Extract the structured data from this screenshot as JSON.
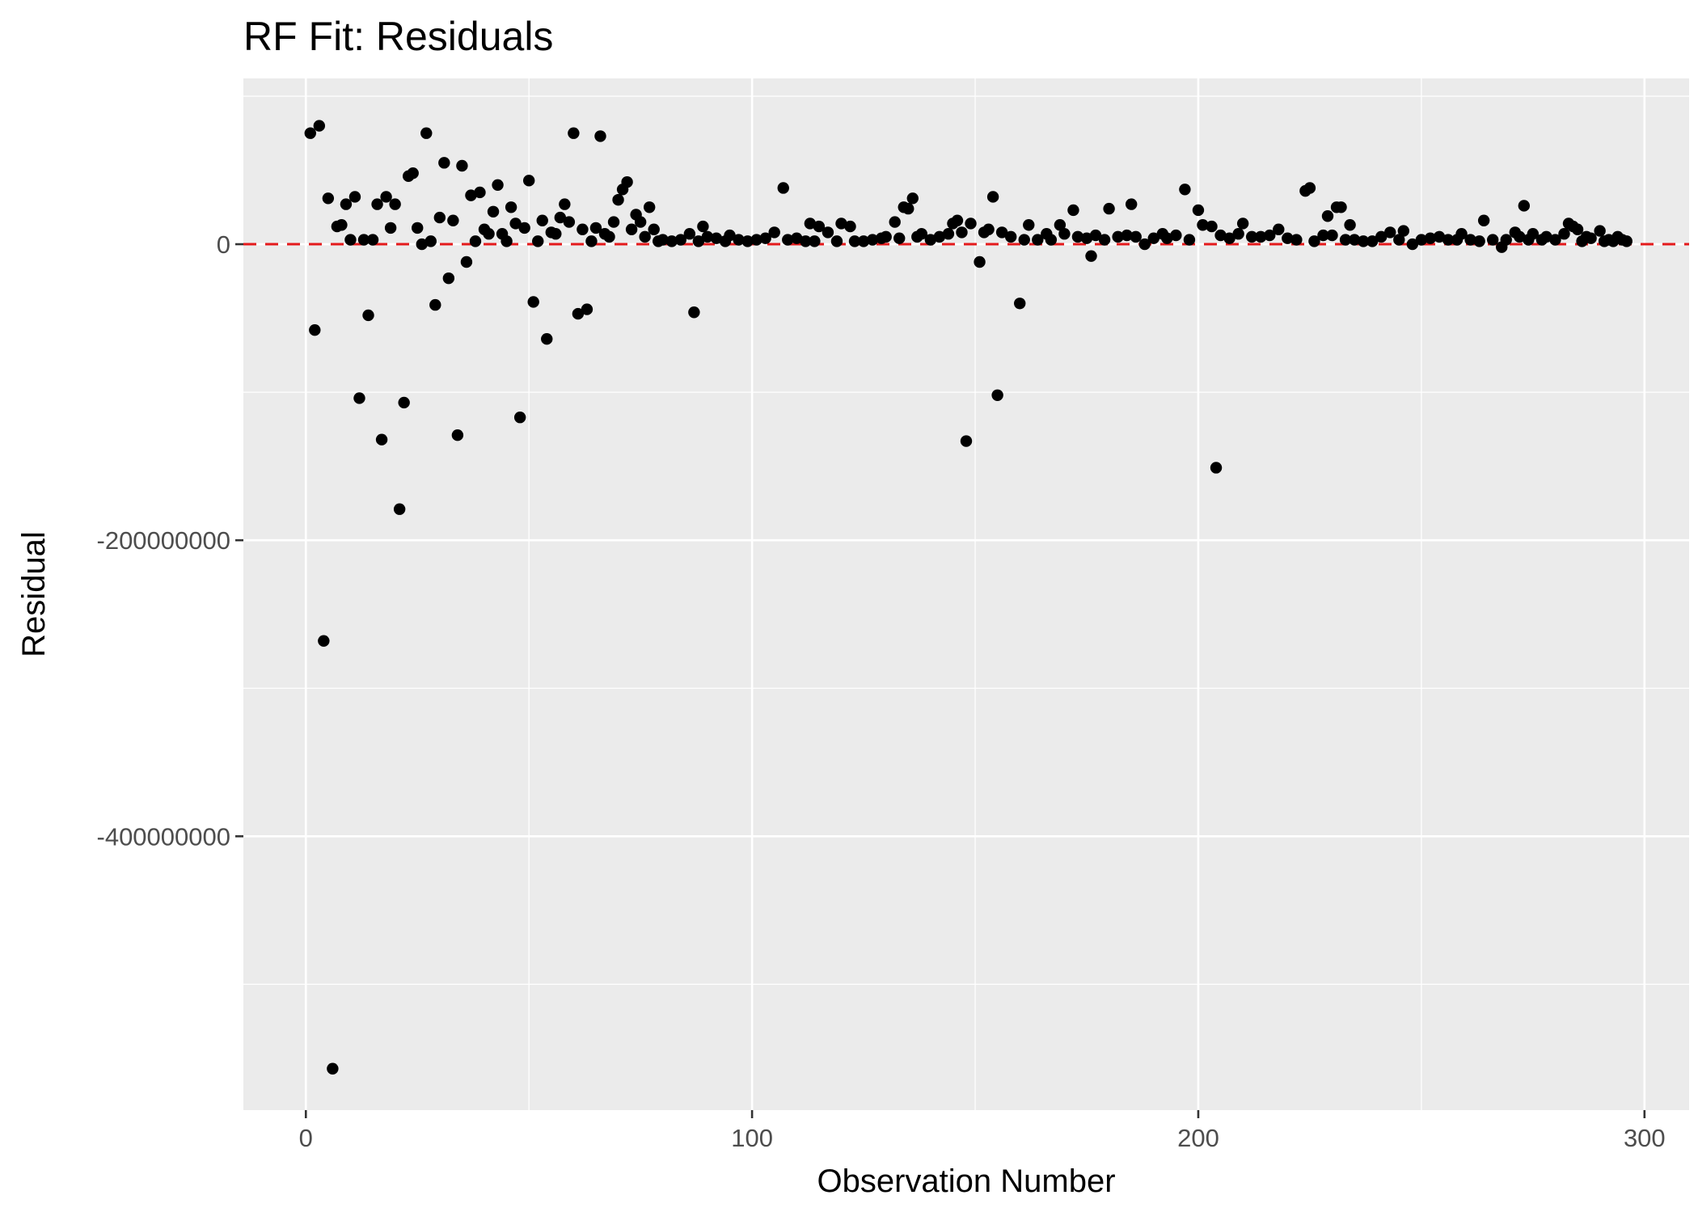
{
  "chart_data": {
    "type": "scatter",
    "title": "RF Fit: Residuals",
    "xlabel": "Observation Number",
    "ylabel": "Residual",
    "xlim": [
      -14,
      310
    ],
    "ylim": [
      -585000000,
      112000000
    ],
    "x_ticks": [
      0,
      100,
      200,
      300
    ],
    "x_tick_labels": [
      "0",
      "100",
      "200",
      "300"
    ],
    "y_ticks": [
      0,
      -200000000,
      -400000000
    ],
    "y_tick_labels": [
      "0",
      "-200000000",
      "-400000000"
    ],
    "x_minor_ticks": [
      50,
      150,
      250
    ],
    "y_minor_ticks": [
      100000000,
      -100000000,
      -300000000,
      -500000000
    ],
    "reference_line": {
      "y": 0,
      "style": "dashed",
      "color": "#e41a1c"
    },
    "grid": true,
    "point_color": "#000000",
    "panel_color": "#ebebeb",
    "points": [
      [
        1,
        75000000
      ],
      [
        2,
        -58000000
      ],
      [
        3,
        80000000
      ],
      [
        4,
        -268000000
      ],
      [
        5,
        31000000
      ],
      [
        6,
        -557000000
      ],
      [
        7,
        12000000
      ],
      [
        8,
        13000000
      ],
      [
        9,
        27000000
      ],
      [
        10,
        3000000
      ],
      [
        11,
        32000000
      ],
      [
        12,
        -104000000
      ],
      [
        13,
        3000000
      ],
      [
        14,
        -48000000
      ],
      [
        15,
        3000000
      ],
      [
        16,
        27000000
      ],
      [
        17,
        -132000000
      ],
      [
        18,
        32000000
      ],
      [
        19,
        11000000
      ],
      [
        20,
        27000000
      ],
      [
        21,
        -179000000
      ],
      [
        22,
        -107000000
      ],
      [
        23,
        46000000
      ],
      [
        24,
        48000000
      ],
      [
        25,
        11000000
      ],
      [
        26,
        0
      ],
      [
        27,
        75000000
      ],
      [
        28,
        2000000
      ],
      [
        29,
        -41000000
      ],
      [
        30,
        18000000
      ],
      [
        31,
        55000000
      ],
      [
        32,
        -23000000
      ],
      [
        33,
        16000000
      ],
      [
        34,
        -129000000
      ],
      [
        35,
        53000000
      ],
      [
        36,
        -12000000
      ],
      [
        37,
        33000000
      ],
      [
        38,
        2000000
      ],
      [
        39,
        35000000
      ],
      [
        40,
        10000000
      ],
      [
        41,
        7000000
      ],
      [
        42,
        22000000
      ],
      [
        43,
        40000000
      ],
      [
        44,
        7000000
      ],
      [
        45,
        2000000
      ],
      [
        46,
        25000000
      ],
      [
        47,
        14000000
      ],
      [
        48,
        -117000000
      ],
      [
        49,
        11000000
      ],
      [
        50,
        43000000
      ],
      [
        51,
        -39000000
      ],
      [
        52,
        2000000
      ],
      [
        53,
        16000000
      ],
      [
        54,
        -64000000
      ],
      [
        55,
        8000000
      ],
      [
        56,
        7000000
      ],
      [
        57,
        18000000
      ],
      [
        58,
        27000000
      ],
      [
        59,
        15000000
      ],
      [
        60,
        75000000
      ],
      [
        61,
        -47000000
      ],
      [
        62,
        10000000
      ],
      [
        63,
        -44000000
      ],
      [
        64,
        2000000
      ],
      [
        65,
        11000000
      ],
      [
        66,
        73000000
      ],
      [
        67,
        7000000
      ],
      [
        68,
        5000000
      ],
      [
        69,
        15000000
      ],
      [
        70,
        30000000
      ],
      [
        71,
        37000000
      ],
      [
        72,
        42000000
      ],
      [
        73,
        10000000
      ],
      [
        74,
        20000000
      ],
      [
        75,
        15000000
      ],
      [
        76,
        5000000
      ],
      [
        77,
        25000000
      ],
      [
        78,
        10000000
      ],
      [
        79,
        2000000
      ],
      [
        80,
        3000000
      ],
      [
        82,
        2000000
      ],
      [
        84,
        3000000
      ],
      [
        86,
        7000000
      ],
      [
        87,
        -46000000
      ],
      [
        88,
        2000000
      ],
      [
        89,
        12000000
      ],
      [
        90,
        5000000
      ],
      [
        92,
        4000000
      ],
      [
        94,
        2000000
      ],
      [
        95,
        6000000
      ],
      [
        97,
        3000000
      ],
      [
        99,
        2000000
      ],
      [
        101,
        3000000
      ],
      [
        103,
        4000000
      ],
      [
        105,
        8000000
      ],
      [
        107,
        38000000
      ],
      [
        108,
        3000000
      ],
      [
        110,
        4000000
      ],
      [
        112,
        2000000
      ],
      [
        113,
        14000000
      ],
      [
        114,
        2000000
      ],
      [
        115,
        12000000
      ],
      [
        117,
        8000000
      ],
      [
        119,
        2000000
      ],
      [
        120,
        14000000
      ],
      [
        122,
        12000000
      ],
      [
        123,
        2000000
      ],
      [
        125,
        2000000
      ],
      [
        127,
        3000000
      ],
      [
        129,
        4000000
      ],
      [
        130,
        5000000
      ],
      [
        132,
        15000000
      ],
      [
        133,
        4000000
      ],
      [
        134,
        25000000
      ],
      [
        135,
        24000000
      ],
      [
        136,
        31000000
      ],
      [
        137,
        5000000
      ],
      [
        138,
        7000000
      ],
      [
        140,
        3000000
      ],
      [
        142,
        5000000
      ],
      [
        144,
        7000000
      ],
      [
        145,
        14000000
      ],
      [
        146,
        16000000
      ],
      [
        147,
        8000000
      ],
      [
        148,
        -133000000
      ],
      [
        149,
        14000000
      ],
      [
        151,
        -12000000
      ],
      [
        152,
        8000000
      ],
      [
        153,
        10000000
      ],
      [
        154,
        32000000
      ],
      [
        155,
        -102000000
      ],
      [
        156,
        8000000
      ],
      [
        158,
        5000000
      ],
      [
        160,
        -40000000
      ],
      [
        161,
        3000000
      ],
      [
        162,
        13000000
      ],
      [
        164,
        3000000
      ],
      [
        166,
        7000000
      ],
      [
        167,
        3000000
      ],
      [
        169,
        13000000
      ],
      [
        170,
        7000000
      ],
      [
        172,
        23000000
      ],
      [
        173,
        5000000
      ],
      [
        175,
        4000000
      ],
      [
        176,
        -8000000
      ],
      [
        177,
        6000000
      ],
      [
        179,
        3000000
      ],
      [
        180,
        24000000
      ],
      [
        182,
        5000000
      ],
      [
        184,
        6000000
      ],
      [
        185,
        27000000
      ],
      [
        186,
        5000000
      ],
      [
        188,
        0
      ],
      [
        190,
        4000000
      ],
      [
        192,
        7000000
      ],
      [
        193,
        4000000
      ],
      [
        195,
        6000000
      ],
      [
        197,
        37000000
      ],
      [
        198,
        3000000
      ],
      [
        200,
        23000000
      ],
      [
        201,
        13000000
      ],
      [
        203,
        12000000
      ],
      [
        204,
        -151000000
      ],
      [
        205,
        6000000
      ],
      [
        207,
        4000000
      ],
      [
        209,
        7000000
      ],
      [
        210,
        14000000
      ],
      [
        212,
        5000000
      ],
      [
        214,
        5000000
      ],
      [
        216,
        6000000
      ],
      [
        218,
        10000000
      ],
      [
        220,
        4000000
      ],
      [
        222,
        3000000
      ],
      [
        224,
        36000000
      ],
      [
        225,
        38000000
      ],
      [
        226,
        2000000
      ],
      [
        228,
        6000000
      ],
      [
        229,
        19000000
      ],
      [
        230,
        6000000
      ],
      [
        231,
        25000000
      ],
      [
        232,
        25000000
      ],
      [
        233,
        3000000
      ],
      [
        234,
        13000000
      ],
      [
        235,
        3000000
      ],
      [
        237,
        2000000
      ],
      [
        239,
        2000000
      ],
      [
        241,
        5000000
      ],
      [
        243,
        8000000
      ],
      [
        245,
        3000000
      ],
      [
        246,
        9000000
      ],
      [
        248,
        0
      ],
      [
        250,
        3000000
      ],
      [
        252,
        4000000
      ],
      [
        254,
        5000000
      ],
      [
        256,
        3000000
      ],
      [
        258,
        3000000
      ],
      [
        259,
        7000000
      ],
      [
        261,
        3000000
      ],
      [
        263,
        2000000
      ],
      [
        264,
        16000000
      ],
      [
        266,
        3000000
      ],
      [
        268,
        -2000000
      ],
      [
        269,
        3000000
      ],
      [
        271,
        8000000
      ],
      [
        272,
        5000000
      ],
      [
        273,
        26000000
      ],
      [
        274,
        3000000
      ],
      [
        275,
        7000000
      ],
      [
        277,
        3000000
      ],
      [
        278,
        5000000
      ],
      [
        280,
        3000000
      ],
      [
        282,
        7000000
      ],
      [
        283,
        14000000
      ],
      [
        284,
        12000000
      ],
      [
        285,
        10000000
      ],
      [
        286,
        2000000
      ],
      [
        287,
        5000000
      ],
      [
        288,
        4000000
      ],
      [
        290,
        9000000
      ],
      [
        291,
        2000000
      ],
      [
        292,
        3000000
      ],
      [
        293,
        2000000
      ],
      [
        294,
        5000000
      ],
      [
        295,
        3000000
      ],
      [
        296,
        2000000
      ]
    ]
  }
}
